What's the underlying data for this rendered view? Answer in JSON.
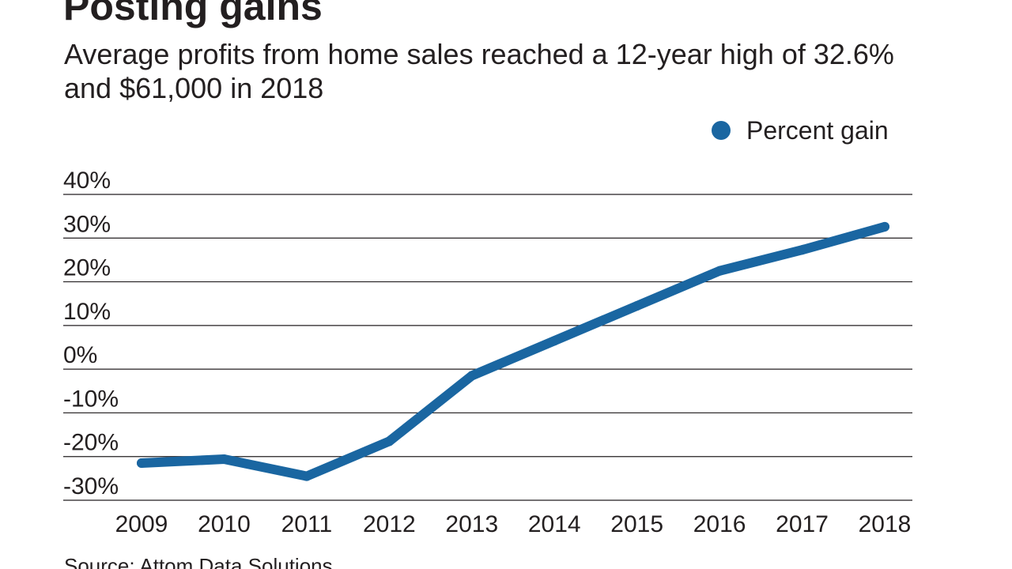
{
  "title": "Posting gains",
  "subtitle": "Average profits from home sales reached a 12-year high of 32.6% and $61,000 in 2018",
  "source": "Source: Attom Data Solutions",
  "colors": {
    "series": "#1a66a1",
    "grid": "#231f20",
    "text": "#231f20"
  },
  "chart_data": {
    "type": "line",
    "title": "Posting gains",
    "subtitle": "Average profits from home sales reached a 12-year high of 32.6% and $61,000 in 2018",
    "xlabel": "",
    "ylabel": "",
    "x": [
      "2009",
      "2010",
      "2011",
      "2012",
      "2013",
      "2014",
      "2015",
      "2016",
      "2017",
      "2018"
    ],
    "ylim": [
      -30,
      40
    ],
    "yticks": [
      40,
      30,
      20,
      10,
      0,
      -10,
      -20,
      -30
    ],
    "ytick_labels": [
      "40%",
      "30%",
      "20%",
      "10%",
      "0%",
      "-10%",
      "-20%",
      "-30%"
    ],
    "grid": true,
    "legend": {
      "position": "top-right",
      "entries": [
        "Percent gain"
      ]
    },
    "series": [
      {
        "name": "Percent gain",
        "values": [
          -21.5,
          -20.6,
          -24.5,
          -16.5,
          -1.5,
          6.5,
          14.5,
          22.5,
          27.3,
          32.6
        ]
      }
    ]
  }
}
